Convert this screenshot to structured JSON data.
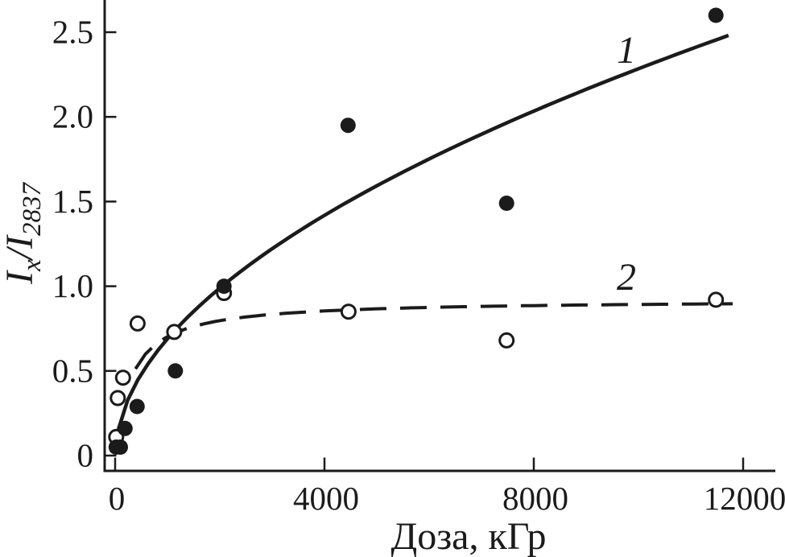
{
  "chart_data": {
    "type": "scatter",
    "title": "",
    "xlabel": "Доза, кГр",
    "ylabel": "I_x/I_2837",
    "ylabel_parts": {
      "base1": "I",
      "sub1": "x",
      "sep": "/",
      "base2": "I",
      "sub2": "2837"
    },
    "xlim": [
      0,
      12650
    ],
    "ylim": [
      -0.09,
      2.69
    ],
    "grid": false,
    "legend_position": "inline-curve-labels",
    "xticks": {
      "values": [
        0,
        4000,
        8000,
        12000
      ],
      "labels": [
        "0",
        "4000",
        "8000",
        "12000"
      ]
    },
    "yticks": {
      "values": [
        0,
        0.5,
        1.0,
        1.5,
        2.0,
        2.5
      ],
      "labels": [
        "0",
        "0.5",
        "1.0",
        "1.5",
        "2.0",
        "2.5"
      ]
    },
    "series": [
      {
        "name": "1",
        "marker": "filled-circle",
        "line": "solid",
        "points": [
          [
            20,
            0.05
          ],
          [
            100,
            0.05
          ],
          [
            190,
            0.16
          ],
          [
            420,
            0.29
          ],
          [
            1150,
            0.5
          ],
          [
            2080,
            1.0
          ],
          [
            4450,
            1.95
          ],
          [
            7480,
            1.49
          ],
          [
            11480,
            2.6
          ]
        ],
        "fit": {
          "type": "power",
          "a": 0.019,
          "b": 0.52,
          "x_min": 45,
          "x_max": 11720
        },
        "label_xy": [
          9770,
          2.39
        ]
      },
      {
        "name": "2",
        "marker": "open-circle",
        "line": "dashed",
        "points": [
          [
            20,
            0.11
          ],
          [
            50,
            0.34
          ],
          [
            150,
            0.46
          ],
          [
            430,
            0.78
          ],
          [
            1130,
            0.73
          ],
          [
            2080,
            0.96
          ],
          [
            4460,
            0.85
          ],
          [
            7480,
            0.68
          ],
          [
            11480,
            0.92
          ]
        ],
        "fit": {
          "type": "saturation",
          "vmax": 0.92,
          "k": 310,
          "x_min": 390,
          "x_max": 11800
        },
        "label_xy": [
          9770,
          1.05
        ]
      }
    ],
    "colors": {
      "ink": "#1b1b1b",
      "background": "#ffffff"
    }
  }
}
